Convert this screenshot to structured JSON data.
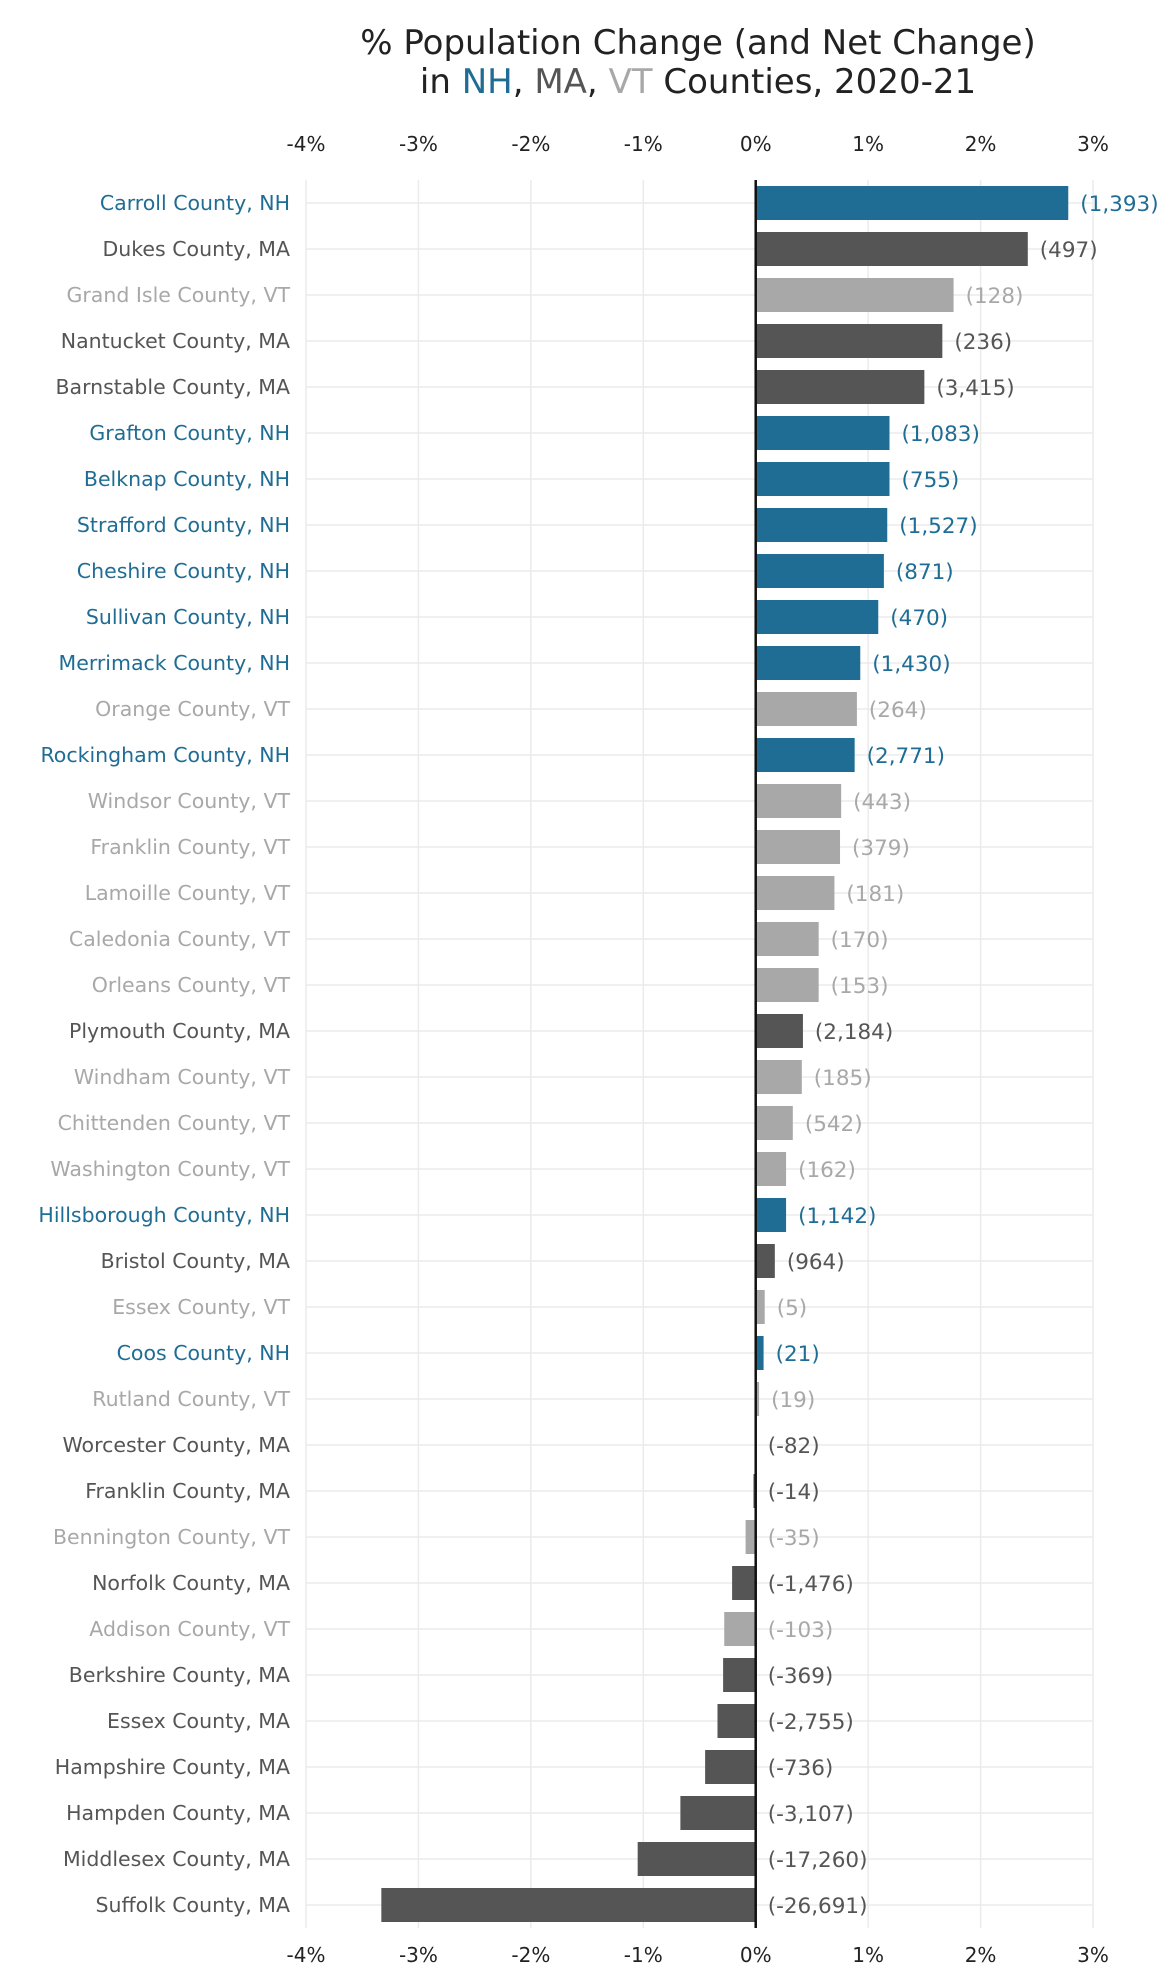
{
  "chart_data": {
    "type": "bar",
    "orientation": "horizontal",
    "title_line1": "% Population Change (and Net Change)",
    "title_line2": {
      "prefix": "in ",
      "nh": "NH",
      "sep1": ", ",
      "ma": "MA",
      "sep2": ", ",
      "vt": "VT",
      "suffix": " Counties, 2020-21"
    },
    "x_axis": {
      "min": -4,
      "max": 3,
      "ticks": [
        -4,
        -3,
        -2,
        -1,
        0,
        1,
        2,
        3
      ],
      "tick_labels": [
        "-4%",
        "-3%",
        "-2%",
        "-1%",
        "0%",
        "1%",
        "2%",
        "3%"
      ]
    },
    "colors": {
      "NH": "#1f6d94",
      "MA": "#555555",
      "VT": "#a8a8a8",
      "grid": "#ebebeb",
      "zero_line": "#111111",
      "title": "#222222"
    },
    "bars": [
      {
        "county": "Carroll County, NH",
        "state": "NH",
        "pct": 2.78,
        "net": "(1,393)"
      },
      {
        "county": "Dukes County, MA",
        "state": "MA",
        "pct": 2.42,
        "net": "(497)"
      },
      {
        "county": "Grand Isle County, VT",
        "state": "VT",
        "pct": 1.76,
        "net": "(128)"
      },
      {
        "county": "Nantucket County, MA",
        "state": "MA",
        "pct": 1.66,
        "net": "(236)"
      },
      {
        "county": "Barnstable County, MA",
        "state": "MA",
        "pct": 1.5,
        "net": "(3,415)"
      },
      {
        "county": "Grafton County, NH",
        "state": "NH",
        "pct": 1.19,
        "net": "(1,083)"
      },
      {
        "county": "Belknap County, NH",
        "state": "NH",
        "pct": 1.19,
        "net": "(755)"
      },
      {
        "county": "Strafford County, NH",
        "state": "NH",
        "pct": 1.17,
        "net": "(1,527)"
      },
      {
        "county": "Cheshire County, NH",
        "state": "NH",
        "pct": 1.14,
        "net": "(871)"
      },
      {
        "county": "Sullivan County, NH",
        "state": "NH",
        "pct": 1.09,
        "net": "(470)"
      },
      {
        "county": "Merrimack County, NH",
        "state": "NH",
        "pct": 0.93,
        "net": "(1,430)"
      },
      {
        "county": "Orange County, VT",
        "state": "VT",
        "pct": 0.9,
        "net": "(264)"
      },
      {
        "county": "Rockingham County, NH",
        "state": "NH",
        "pct": 0.88,
        "net": "(2,771)"
      },
      {
        "county": "Windsor County, VT",
        "state": "VT",
        "pct": 0.76,
        "net": "(443)"
      },
      {
        "county": "Franklin County, VT",
        "state": "VT",
        "pct": 0.75,
        "net": "(379)"
      },
      {
        "county": "Lamoille County, VT",
        "state": "VT",
        "pct": 0.7,
        "net": "(181)"
      },
      {
        "county": "Caledonia County, VT",
        "state": "VT",
        "pct": 0.56,
        "net": "(170)"
      },
      {
        "county": "Orleans County, VT",
        "state": "VT",
        "pct": 0.56,
        "net": "(153)"
      },
      {
        "county": "Plymouth County, MA",
        "state": "MA",
        "pct": 0.42,
        "net": "(2,184)"
      },
      {
        "county": "Windham County, VT",
        "state": "VT",
        "pct": 0.41,
        "net": "(185)"
      },
      {
        "county": "Chittenden County, VT",
        "state": "VT",
        "pct": 0.33,
        "net": "(542)"
      },
      {
        "county": "Washington County, VT",
        "state": "VT",
        "pct": 0.27,
        "net": "(162)"
      },
      {
        "county": "Hillsborough County, NH",
        "state": "NH",
        "pct": 0.27,
        "net": "(1,142)"
      },
      {
        "county": "Bristol County, MA",
        "state": "MA",
        "pct": 0.17,
        "net": "(964)"
      },
      {
        "county": "Essex County, VT",
        "state": "VT",
        "pct": 0.08,
        "net": "(5)"
      },
      {
        "county": "Coos County, NH",
        "state": "NH",
        "pct": 0.07,
        "net": "(21)"
      },
      {
        "county": "Rutland County, VT",
        "state": "VT",
        "pct": 0.03,
        "net": "(19)"
      },
      {
        "county": "Worcester County, MA",
        "state": "MA",
        "pct": -0.01,
        "net": "(-82)"
      },
      {
        "county": "Franklin County, MA",
        "state": "MA",
        "pct": -0.02,
        "net": "(-14)"
      },
      {
        "county": "Bennington County, VT",
        "state": "VT",
        "pct": -0.09,
        "net": "(-35)"
      },
      {
        "county": "Norfolk County, MA",
        "state": "MA",
        "pct": -0.21,
        "net": "(-1,476)"
      },
      {
        "county": "Addison County, VT",
        "state": "VT",
        "pct": -0.28,
        "net": "(-103)"
      },
      {
        "county": "Berkshire County, MA",
        "state": "MA",
        "pct": -0.29,
        "net": "(-369)"
      },
      {
        "county": "Essex County, MA",
        "state": "MA",
        "pct": -0.34,
        "net": "(-2,755)"
      },
      {
        "county": "Hampshire County, MA",
        "state": "MA",
        "pct": -0.45,
        "net": "(-736)"
      },
      {
        "county": "Hampden County, MA",
        "state": "MA",
        "pct": -0.67,
        "net": "(-3,107)"
      },
      {
        "county": "Middlesex County, MA",
        "state": "MA",
        "pct": -1.05,
        "net": "(-17,260)"
      },
      {
        "county": "Suffolk County, MA",
        "state": "MA",
        "pct": -3.33,
        "net": "(-26,691)"
      }
    ]
  }
}
